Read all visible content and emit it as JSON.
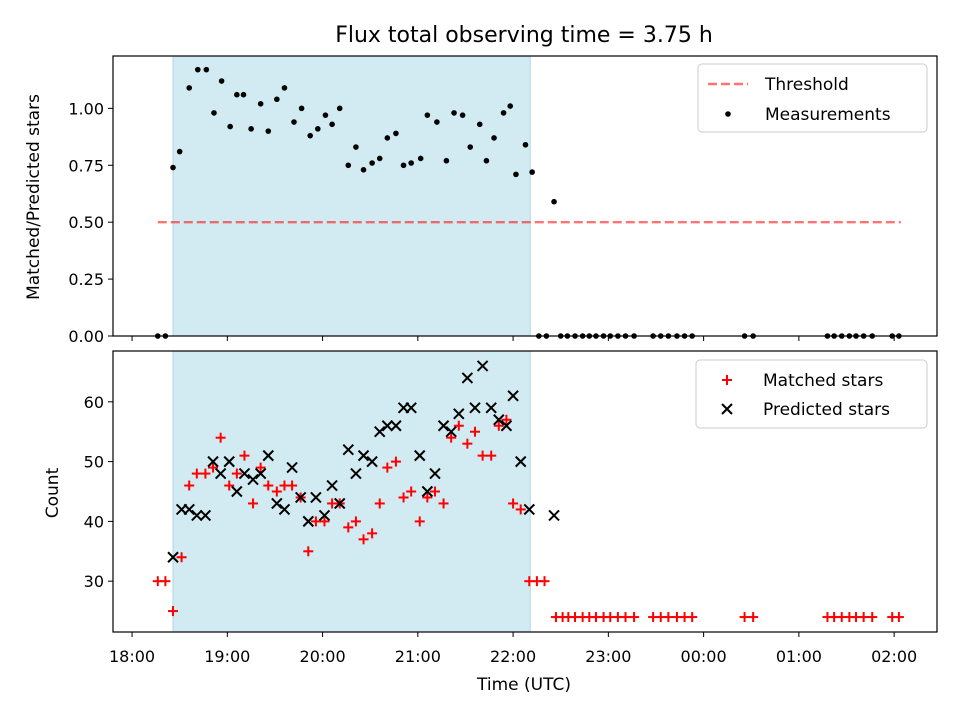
{
  "chart_data": {
    "title": "Flux total observing time = 3.75 h",
    "xlabel": "Time (UTC)",
    "x_unit": "hours since 18:00 UTC",
    "xlim": [
      -0.2,
      8.45
    ],
    "x_ticks": [
      {
        "x": 0,
        "label": "18:00"
      },
      {
        "x": 1,
        "label": "19:00"
      },
      {
        "x": 2,
        "label": "20:00"
      },
      {
        "x": 3,
        "label": "21:00"
      },
      {
        "x": 4,
        "label": "22:00"
      },
      {
        "x": 5,
        "label": "23:00"
      },
      {
        "x": 6,
        "label": "00:00"
      },
      {
        "x": 7,
        "label": "01:00"
      },
      {
        "x": 8,
        "label": "02:00"
      }
    ],
    "shaded_span": [
      0.43,
      4.18
    ],
    "shade_color": "#add8e6",
    "top": {
      "type": "scatter",
      "ylabel": "Matched/Predicted stars",
      "ylim": [
        0,
        1.23
      ],
      "y_ticks": [
        "0.00",
        "0.25",
        "0.50",
        "0.75",
        "1.00"
      ],
      "threshold": {
        "name": "Threshold",
        "value": 0.5,
        "x": [
          0.27,
          8.07
        ],
        "color": "#ff0000"
      },
      "measurements": {
        "name": "Measurements",
        "color": "#000000",
        "points": [
          [
            0.27,
            0
          ],
          [
            0.35,
            0
          ],
          [
            0.43,
            0.74
          ],
          [
            0.5,
            0.81
          ],
          [
            0.6,
            1.09
          ],
          [
            0.69,
            1.17
          ],
          [
            0.78,
            1.17
          ],
          [
            0.86,
            0.98
          ],
          [
            0.94,
            1.12
          ],
          [
            1.03,
            0.92
          ],
          [
            1.1,
            1.06
          ],
          [
            1.17,
            1.06
          ],
          [
            1.25,
            0.91
          ],
          [
            1.35,
            1.02
          ],
          [
            1.43,
            0.9
          ],
          [
            1.52,
            1.04
          ],
          [
            1.6,
            1.09
          ],
          [
            1.7,
            0.94
          ],
          [
            1.78,
            1.0
          ],
          [
            1.87,
            0.88
          ],
          [
            1.95,
            0.91
          ],
          [
            2.03,
            0.97
          ],
          [
            2.1,
            0.93
          ],
          [
            2.18,
            1.0
          ],
          [
            2.27,
            0.75
          ],
          [
            2.35,
            0.83
          ],
          [
            2.43,
            0.73
          ],
          [
            2.52,
            0.76
          ],
          [
            2.6,
            0.78
          ],
          [
            2.68,
            0.87
          ],
          [
            2.77,
            0.89
          ],
          [
            2.85,
            0.75
          ],
          [
            2.93,
            0.76
          ],
          [
            3.03,
            0.78
          ],
          [
            3.1,
            0.97
          ],
          [
            3.2,
            0.94
          ],
          [
            3.3,
            0.77
          ],
          [
            3.38,
            0.98
          ],
          [
            3.47,
            0.97
          ],
          [
            3.55,
            0.83
          ],
          [
            3.65,
            0.93
          ],
          [
            3.72,
            0.77
          ],
          [
            3.8,
            0.87
          ],
          [
            3.9,
            0.98
          ],
          [
            3.97,
            1.01
          ],
          [
            4.03,
            0.71
          ],
          [
            4.13,
            0.84
          ],
          [
            4.2,
            0.72
          ],
          [
            4.27,
            0
          ],
          [
            4.35,
            0
          ],
          [
            4.43,
            0.59
          ],
          [
            4.5,
            0
          ],
          [
            4.57,
            0
          ],
          [
            4.65,
            0
          ],
          [
            4.73,
            0
          ],
          [
            4.8,
            0
          ],
          [
            4.87,
            0
          ],
          [
            4.95,
            0
          ],
          [
            5.02,
            0
          ],
          [
            5.1,
            0
          ],
          [
            5.18,
            0
          ],
          [
            5.27,
            0
          ],
          [
            5.47,
            0
          ],
          [
            5.55,
            0
          ],
          [
            5.63,
            0
          ],
          [
            5.72,
            0
          ],
          [
            5.8,
            0
          ],
          [
            5.88,
            0
          ],
          [
            6.43,
            0
          ],
          [
            6.52,
            0
          ],
          [
            7.3,
            0
          ],
          [
            7.37,
            0
          ],
          [
            7.45,
            0
          ],
          [
            7.53,
            0
          ],
          [
            7.6,
            0
          ],
          [
            7.68,
            0
          ],
          [
            7.77,
            0
          ],
          [
            7.98,
            0
          ],
          [
            8.05,
            0
          ]
        ]
      },
      "legend": {
        "position": "top-right",
        "entries": [
          "Threshold",
          "Measurements"
        ]
      }
    },
    "bottom": {
      "type": "scatter",
      "ylabel": "Count",
      "ylim": [
        21.5,
        68.5
      ],
      "y_ticks": [
        "30",
        "40",
        "50",
        "60"
      ],
      "matched": {
        "name": "Matched stars",
        "color": "#ff0000",
        "marker": "+",
        "points": [
          [
            0.27,
            30
          ],
          [
            0.35,
            30
          ],
          [
            0.43,
            25
          ],
          [
            0.52,
            34
          ],
          [
            0.6,
            46
          ],
          [
            0.68,
            48
          ],
          [
            0.77,
            48
          ],
          [
            0.85,
            49
          ],
          [
            0.93,
            54
          ],
          [
            1.02,
            46
          ],
          [
            1.1,
            48
          ],
          [
            1.18,
            51
          ],
          [
            1.27,
            43
          ],
          [
            1.35,
            49
          ],
          [
            1.43,
            46
          ],
          [
            1.52,
            45
          ],
          [
            1.6,
            46
          ],
          [
            1.68,
            46
          ],
          [
            1.77,
            44
          ],
          [
            1.85,
            35
          ],
          [
            1.93,
            40
          ],
          [
            2.02,
            40
          ],
          [
            2.1,
            43
          ],
          [
            2.18,
            43
          ],
          [
            2.27,
            39
          ],
          [
            2.35,
            40
          ],
          [
            2.43,
            37
          ],
          [
            2.52,
            38
          ],
          [
            2.6,
            43
          ],
          [
            2.68,
            49
          ],
          [
            2.77,
            50
          ],
          [
            2.85,
            44
          ],
          [
            2.93,
            45
          ],
          [
            3.02,
            40
          ],
          [
            3.1,
            44
          ],
          [
            3.18,
            45
          ],
          [
            3.27,
            43
          ],
          [
            3.35,
            54
          ],
          [
            3.43,
            56
          ],
          [
            3.52,
            53
          ],
          [
            3.6,
            55
          ],
          [
            3.68,
            51
          ],
          [
            3.77,
            51
          ],
          [
            3.85,
            56
          ],
          [
            3.93,
            57
          ],
          [
            4.0,
            43
          ],
          [
            4.08,
            42
          ],
          [
            4.17,
            30
          ],
          [
            4.25,
            30
          ],
          [
            4.33,
            30
          ],
          [
            4.45,
            24
          ],
          [
            4.52,
            24
          ],
          [
            4.58,
            24
          ],
          [
            4.65,
            24
          ],
          [
            4.73,
            24
          ],
          [
            4.8,
            24
          ],
          [
            4.87,
            24
          ],
          [
            4.95,
            24
          ],
          [
            5.02,
            24
          ],
          [
            5.1,
            24
          ],
          [
            5.18,
            24
          ],
          [
            5.27,
            24
          ],
          [
            5.47,
            24
          ],
          [
            5.55,
            24
          ],
          [
            5.63,
            24
          ],
          [
            5.72,
            24
          ],
          [
            5.8,
            24
          ],
          [
            5.88,
            24
          ],
          [
            6.43,
            24
          ],
          [
            6.52,
            24
          ],
          [
            7.3,
            24
          ],
          [
            7.37,
            24
          ],
          [
            7.45,
            24
          ],
          [
            7.53,
            24
          ],
          [
            7.6,
            24
          ],
          [
            7.68,
            24
          ],
          [
            7.77,
            24
          ],
          [
            7.98,
            24
          ],
          [
            8.05,
            24
          ]
        ]
      },
      "predicted": {
        "name": "Predicted stars",
        "color": "#000000",
        "marker": "x",
        "points": [
          [
            0.43,
            34
          ],
          [
            0.52,
            42
          ],
          [
            0.6,
            42
          ],
          [
            0.68,
            41
          ],
          [
            0.77,
            41
          ],
          [
            0.85,
            50
          ],
          [
            0.93,
            48
          ],
          [
            1.02,
            50
          ],
          [
            1.1,
            45
          ],
          [
            1.18,
            48
          ],
          [
            1.27,
            47
          ],
          [
            1.35,
            48
          ],
          [
            1.43,
            51
          ],
          [
            1.52,
            43
          ],
          [
            1.6,
            42
          ],
          [
            1.68,
            49
          ],
          [
            1.77,
            44
          ],
          [
            1.85,
            40
          ],
          [
            1.93,
            44
          ],
          [
            2.02,
            41
          ],
          [
            2.1,
            46
          ],
          [
            2.18,
            43
          ],
          [
            2.27,
            52
          ],
          [
            2.35,
            48
          ],
          [
            2.43,
            51
          ],
          [
            2.52,
            50
          ],
          [
            2.6,
            55
          ],
          [
            2.68,
            56
          ],
          [
            2.77,
            56
          ],
          [
            2.85,
            59
          ],
          [
            2.93,
            59
          ],
          [
            3.02,
            51
          ],
          [
            3.1,
            45
          ],
          [
            3.18,
            48
          ],
          [
            3.27,
            56
          ],
          [
            3.35,
            55
          ],
          [
            3.43,
            58
          ],
          [
            3.52,
            64
          ],
          [
            3.6,
            59
          ],
          [
            3.68,
            66
          ],
          [
            3.77,
            59
          ],
          [
            3.85,
            57
          ],
          [
            3.93,
            56
          ],
          [
            4.0,
            61
          ],
          [
            4.08,
            50
          ],
          [
            4.17,
            42
          ],
          [
            4.43,
            41
          ]
        ]
      },
      "legend": {
        "position": "top-right",
        "entries": [
          "Matched stars",
          "Predicted stars"
        ]
      }
    }
  }
}
